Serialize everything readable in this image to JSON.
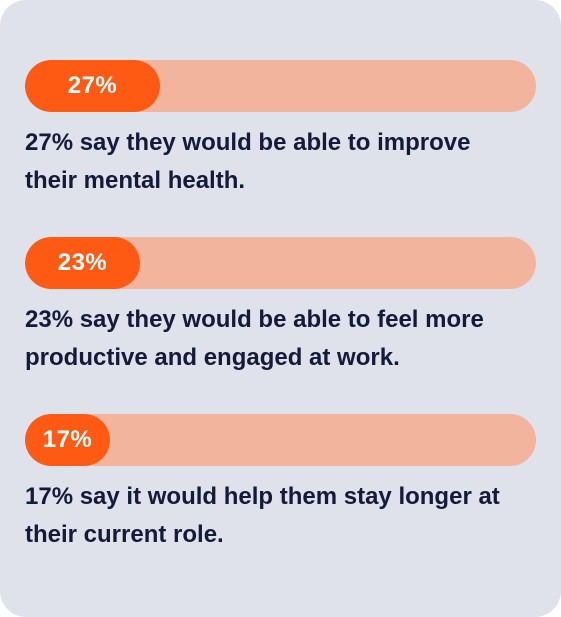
{
  "chart_data": {
    "type": "bar",
    "orientation": "horizontal",
    "xlim": [
      0,
      100
    ],
    "colors": {
      "background": "#dfe2ea",
      "track": "#f2b49c",
      "fill": "#ff5a14",
      "label": "#ffffff",
      "text": "#141a3a"
    },
    "items": [
      {
        "value": 27,
        "label": "27%",
        "description": "27% say they would be able to improve their mental health."
      },
      {
        "value": 23,
        "label": "23%",
        "description": "23% say they would be able to feel more productive and engaged at work."
      },
      {
        "value": 17,
        "label": "17%",
        "description": "17% say it would help them stay longer at their current role."
      }
    ]
  }
}
